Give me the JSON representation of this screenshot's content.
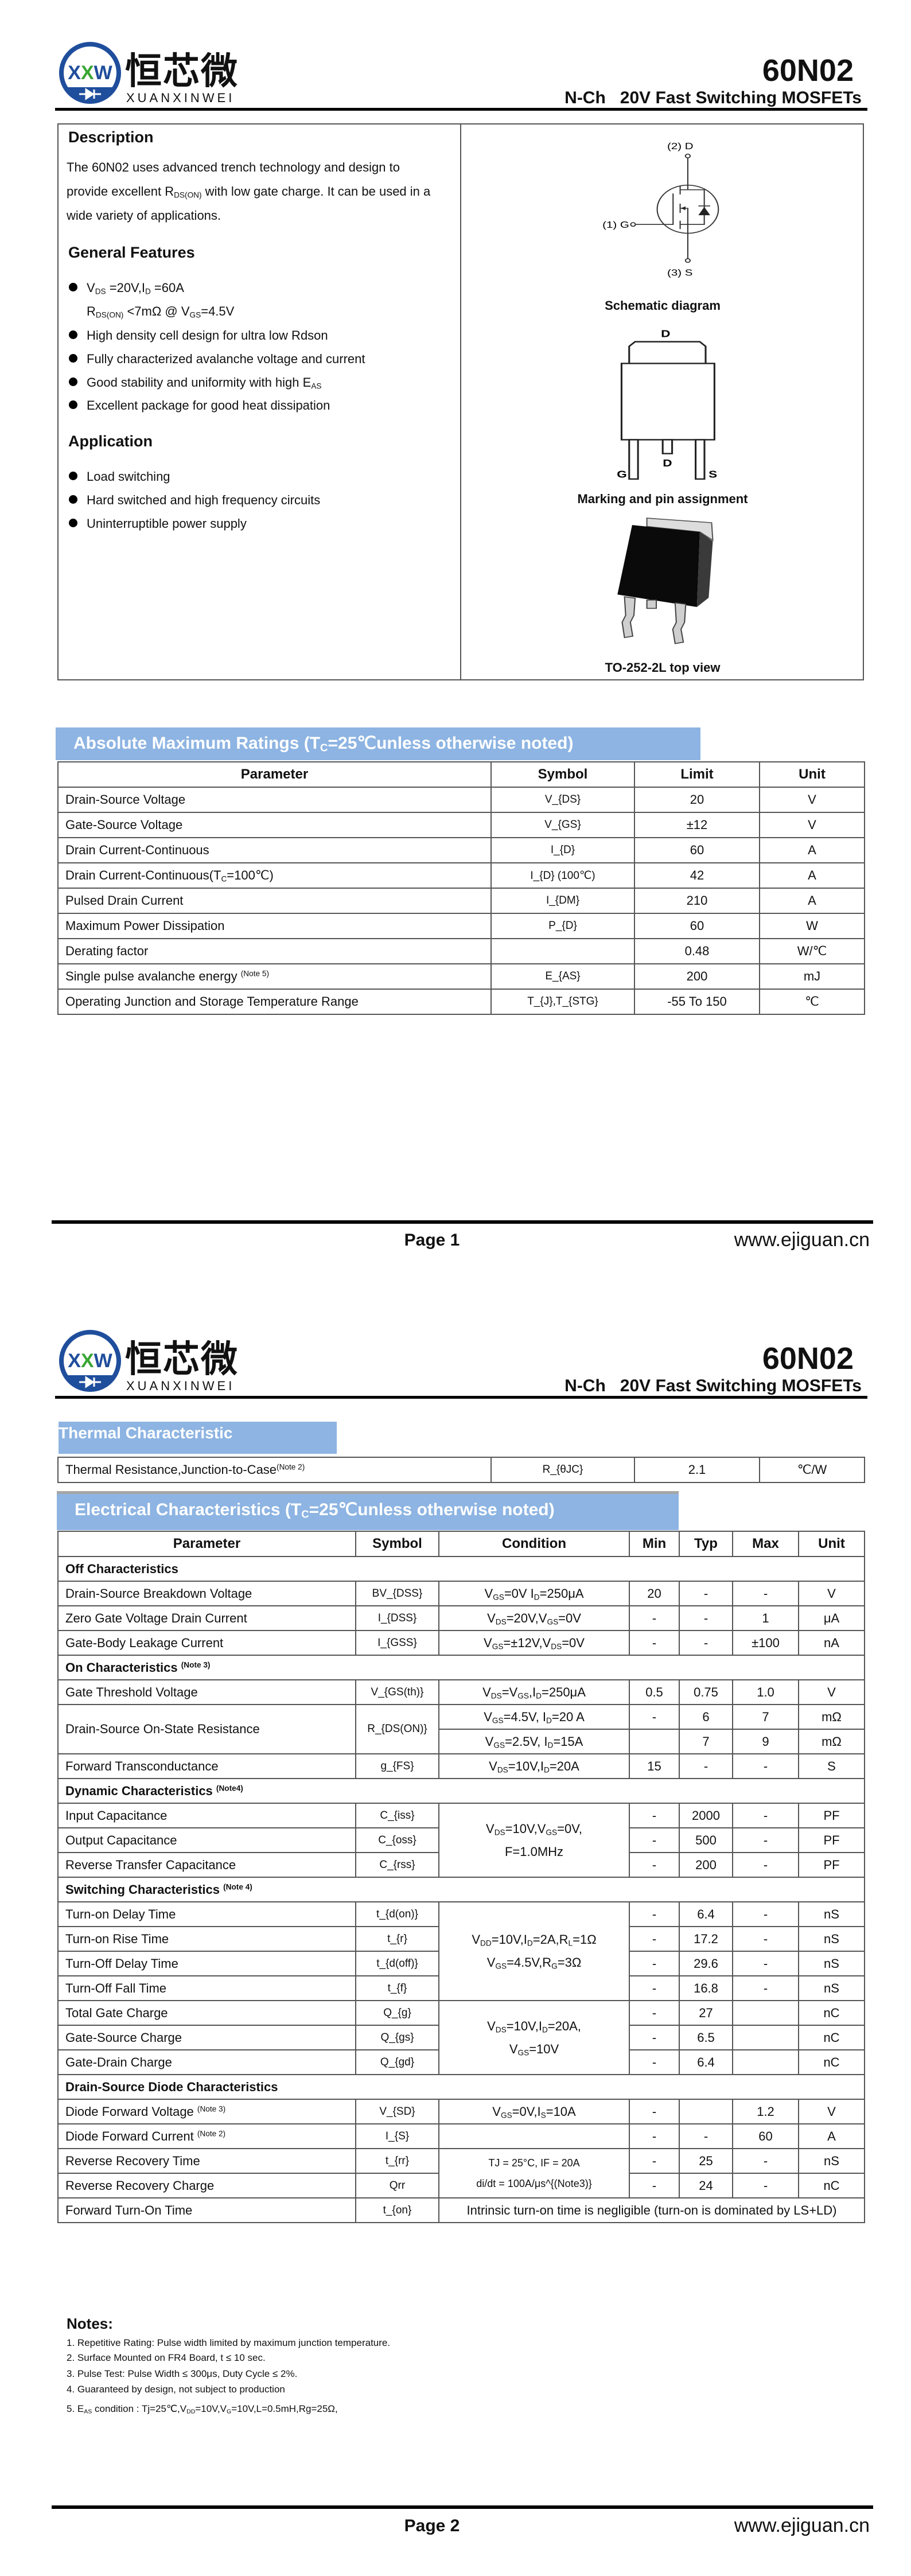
{
  "header": {
    "logo_mark": "XXW",
    "logo_cn": "恒芯微",
    "logo_en": "XUANXINWEI",
    "part_number": "60N02",
    "subtitle": "N-Ch   20V Fast Switching MOSFETs"
  },
  "colors": {
    "banner": "#8db4e2",
    "logo_blue": "#1f4e9c",
    "logo_green": "#3aa635"
  },
  "page1": {
    "description": {
      "heading": "Description",
      "text": "The 60N02 uses advanced trench technology and design to provide excellent R_{DS(ON)} with low gate charge. It can be used in a wide variety of applications."
    },
    "features": {
      "heading": "General Features",
      "items": [
        "V_{DS} =20V,I_{D} =60A",
        "R_{DS(ON)} <7mΩ @ V_{GS}=4.5V",
        "High density cell design for ultra low Rdson",
        "Fully characterized avalanche voltage and current",
        "Good stability and uniformity with high E_{AS}",
        "Excellent package for good heat dissipation"
      ]
    },
    "application": {
      "heading": "Application",
      "items": [
        "Load switching",
        "Hard switched and high frequency circuits",
        "Uninterruptible power supply"
      ]
    },
    "schematic": {
      "caption": "Schematic diagram",
      "pin_drain": "(2) D",
      "pin_gate": "(1) G",
      "pin_source": "(3) S"
    },
    "marking": {
      "caption": "Marking and pin assignment",
      "tab_label": "D",
      "pin_g": "G",
      "pin_d": "D",
      "pin_s": "S"
    },
    "package": {
      "caption": "TO-252-2L top view"
    },
    "abs_max": {
      "title": "Absolute Maximum Ratings (T_{C}=25℃unless otherwise noted)",
      "columns": [
        "Parameter",
        "Symbol",
        "Limit",
        "Unit"
      ],
      "rows": [
        {
          "param": "Drain-Source Voltage",
          "symbol": "V_{DS}",
          "limit": "20",
          "unit": "V"
        },
        {
          "param": "Gate-Source Voltage",
          "symbol": "V_{GS}",
          "limit": "±12",
          "unit": "V"
        },
        {
          "param": "Drain Current-Continuous",
          "symbol": "I_{D}",
          "limit": "60",
          "unit": "A"
        },
        {
          "param": "Drain Current-Continuous(T_{C}=100℃)",
          "symbol": "I_{D} (100℃)",
          "limit": "42",
          "unit": "A"
        },
        {
          "param": "Pulsed Drain Current",
          "symbol": "I_{DM}",
          "limit": "210",
          "unit": "A"
        },
        {
          "param": "Maximum Power Dissipation",
          "symbol": "P_{D}",
          "limit": "60",
          "unit": "W"
        },
        {
          "param": "Derating factor",
          "symbol": "",
          "limit": "0.48",
          "unit": "W/℃"
        },
        {
          "param": "Single pulse avalanche energy ^{(Note 5)}",
          "symbol": "E_{AS}",
          "limit": "200",
          "unit": "mJ"
        },
        {
          "param": "Operating Junction and Storage Temperature Range",
          "symbol": "T_{J},T_{STG}",
          "limit": "-55 To 150",
          "unit": "℃"
        }
      ]
    },
    "footer": {
      "page": "Page 1",
      "url": "www.ejiguan.cn"
    }
  },
  "page2": {
    "thermal": {
      "title": "Thermal Characteristic",
      "rows": [
        {
          "param": "Thermal Resistance,Junction-to-Case^{(Note 2)}",
          "symbol": "R_{θJC}",
          "limit": "2.1",
          "unit": "℃/W"
        }
      ]
    },
    "electrical": {
      "title": "Electrical Characteristics (T_{C}=25℃unless otherwise noted)",
      "columns": [
        "Parameter",
        "Symbol",
        "Condition",
        "Min",
        "Typ",
        "Max",
        "Unit"
      ],
      "rows": [
        {
          "section": "Off Characteristics"
        },
        {
          "param": "Drain-Source Breakdown Voltage",
          "symbol": "BV_{DSS}",
          "cond": "V_{GS}=0V I_{D}=250μA",
          "min": "20",
          "typ": "-",
          "max": "-",
          "unit": "V"
        },
        {
          "param": "Zero Gate Voltage Drain Current",
          "symbol": "I_{DSS}",
          "cond": "V_{DS}=20V,V_{GS}=0V",
          "min": "-",
          "typ": "-",
          "max": "1",
          "unit": "μA"
        },
        {
          "param": "Gate-Body Leakage Current",
          "symbol": "I_{GSS}",
          "cond": "V_{GS}=±12V,V_{DS}=0V",
          "min": "-",
          "typ": "-",
          "max": "±100",
          "unit": "nA"
        },
        {
          "section": "On Characteristics ^{(Note 3)}"
        },
        {
          "param": "Gate Threshold Voltage",
          "symbol": "V_{GS(th)}",
          "cond": "V_{DS}=V_{GS},I_{D}=250μA",
          "min": "0.5",
          "typ": "0.75",
          "max": "1.0",
          "unit": "V"
        },
        {
          "param": "Drain-Source On-State Resistance",
          "symbol": "R_{DS(ON)}",
          "cond": "V_{GS}=4.5V, I_{D}=20 A",
          "min": "-",
          "typ": "6",
          "max": "7",
          "unit": "mΩ"
        },
        {
          "param": null,
          "symbol": null,
          "cond": "V_{GS}=2.5V, I_{D}=15A",
          "min": "",
          "typ": "7",
          "max": "9",
          "unit": "mΩ"
        },
        {
          "param": "Forward Transconductance",
          "symbol": "g_{FS}",
          "cond": "V_{DS}=10V,I_{D}=20A",
          "min": "15",
          "typ": "-",
          "max": "-",
          "unit": "S"
        },
        {
          "section": "Dynamic Characteristics ^{(Note4)}"
        },
        {
          "param": "Input Capacitance",
          "symbol": "C_{iss}",
          "cond": "V_{DS}=10V,V_{GS}=0V,\nF=1.0MHz",
          "min": "-",
          "typ": "2000",
          "max": "-",
          "unit": "PF"
        },
        {
          "param": "Output Capacitance",
          "symbol": "C_{oss}",
          "cond": null,
          "min": "-",
          "typ": "500",
          "max": "-",
          "unit": "PF"
        },
        {
          "param": "Reverse Transfer Capacitance",
          "symbol": "C_{rss}",
          "cond": null,
          "min": "-",
          "typ": "200",
          "max": "-",
          "unit": "PF"
        },
        {
          "section": "Switching Characteristics ^{(Note 4)}"
        },
        {
          "param": "Turn-on Delay Time",
          "symbol": "t_{d(on)}",
          "cond": "V_{DD}=10V,I_{D}=2A,R_{L}=1Ω\nV_{GS}=4.5V,R_{G}=3Ω",
          "min": "-",
          "typ": "6.4",
          "max": "-",
          "unit": "nS"
        },
        {
          "param": "Turn-on Rise Time",
          "symbol": "t_{r}",
          "cond": null,
          "min": "-",
          "typ": "17.2",
          "max": "-",
          "unit": "nS"
        },
        {
          "param": "Turn-Off Delay Time",
          "symbol": "t_{d(off)}",
          "cond": null,
          "min": "-",
          "typ": "29.6",
          "max": "-",
          "unit": "nS"
        },
        {
          "param": "Turn-Off Fall Time",
          "symbol": "t_{f}",
          "cond": null,
          "min": "-",
          "typ": "16.8",
          "max": "-",
          "unit": "nS"
        },
        {
          "param": "Total Gate Charge",
          "symbol": "Q_{g}",
          "cond": "V_{DS}=10V,I_{D}=20A,\nV_{GS}=10V",
          "min": "-",
          "typ": "27",
          "max": "",
          "unit": "nC"
        },
        {
          "param": "Gate-Source Charge",
          "symbol": "Q_{gs}",
          "cond": null,
          "min": "-",
          "typ": "6.5",
          "max": "",
          "unit": "nC"
        },
        {
          "param": "Gate-Drain Charge",
          "symbol": "Q_{gd}",
          "cond": null,
          "min": "-",
          "typ": "6.4",
          "max": "",
          "unit": "nC"
        },
        {
          "section": "Drain-Source Diode Characteristics"
        },
        {
          "param": "Diode Forward Voltage ^{(Note 3)}",
          "symbol": "V_{SD}",
          "cond": "V_{GS}=0V,I_{S}=10A",
          "min": "-",
          "typ": "",
          "max": "1.2",
          "unit": "V"
        },
        {
          "param": "Diode Forward Current ^{(Note 2)}",
          "symbol": "I_{S}",
          "cond": "",
          "min": "-",
          "typ": "-",
          "max": "60",
          "unit": "A"
        },
        {
          "param": "Reverse Recovery Time",
          "symbol": "t_{rr}",
          "cond": "TJ = 25°C, IF = 20A\ndi/dt = 100A/μs^{(Note3)}",
          "min": "-",
          "typ": "25",
          "max": "-",
          "unit": "nS"
        },
        {
          "param": "Reverse Recovery Charge",
          "symbol": "Qrr",
          "cond": null,
          "min": "-",
          "typ": "24",
          "max": "-",
          "unit": "nC"
        },
        {
          "param": "Forward Turn-On Time",
          "symbol": "t_{on}",
          "note": "Intrinsic turn-on time is negligible (turn-on is dominated by LS+LD)"
        }
      ]
    },
    "notes": {
      "heading": "Notes:",
      "items": [
        "1. Repetitive Rating: Pulse width limited by maximum junction temperature.",
        "2. Surface Mounted on FR4 Board, t ≤ 10 sec.",
        "3. Pulse Test: Pulse Width ≤ 300μs, Duty Cycle ≤ 2%.",
        "4. Guaranteed by design, not subject to production",
        "5. E_{AS} condition : Tj=25℃,V_{DD}=10V,V_{G}=10V,L=0.5mH,Rg=25Ω,"
      ]
    },
    "footer": {
      "page": "Page 2",
      "url": "www.ejiguan.cn"
    }
  }
}
